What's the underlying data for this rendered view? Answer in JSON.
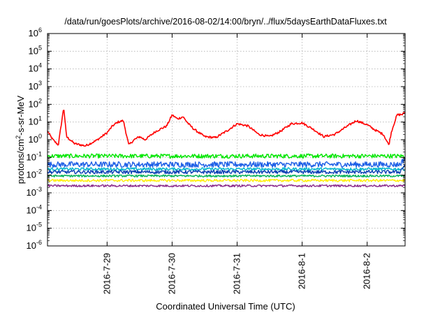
{
  "chart_data": {
    "type": "line",
    "title": "/data/run/goesPlots/archive/2016-08-02/14:00/bryn/../flux/5daysEarthDataFluxes.txt",
    "xlabel": "Coordinated Universal Time (UTC)",
    "ylabel_parts": {
      "main": "protons/cm",
      "sup": "2",
      "rest": "-s-sr-MeV"
    },
    "y_scale": "log",
    "ylim": [
      1e-06,
      1000000.0
    ],
    "y_ticks": [
      {
        "value": 1e-06,
        "base": "10",
        "exp": "-6"
      },
      {
        "value": 1e-05,
        "base": "10",
        "exp": "-5"
      },
      {
        "value": 0.0001,
        "base": "10",
        "exp": "-4"
      },
      {
        "value": 0.001,
        "base": "10",
        "exp": "-3"
      },
      {
        "value": 0.01,
        "base": "10",
        "exp": "-2"
      },
      {
        "value": 0.1,
        "base": "10",
        "exp": "-1"
      },
      {
        "value": 1,
        "base": "10",
        "exp": "0"
      },
      {
        "value": 10,
        "base": "10",
        "exp": "1"
      },
      {
        "value": 100,
        "base": "10",
        "exp": "2"
      },
      {
        "value": 1000.0,
        "base": "10",
        "exp": "3"
      },
      {
        "value": 10000.0,
        "base": "10",
        "exp": "4"
      },
      {
        "value": 100000.0,
        "base": "10",
        "exp": "5"
      },
      {
        "value": 1000000.0,
        "base": "10",
        "exp": "6"
      }
    ],
    "x_unit": "days",
    "x_range": [
      "2016-07-28 02:00",
      "2016-08-02 14:00"
    ],
    "x_ticks": [
      {
        "date": "2016-07-29",
        "label": "2016-7-29"
      },
      {
        "date": "2016-07-30",
        "label": "2016-7-30"
      },
      {
        "date": "2016-07-31",
        "label": "2016-7-31"
      },
      {
        "date": "2016-08-01",
        "label": "2016-8-1"
      },
      {
        "date": "2016-08-02",
        "label": "2016-8-2"
      }
    ],
    "grid": true,
    "legend": "none",
    "series": [
      {
        "color": "#ff0000",
        "noise_log10": 0.06,
        "points": [
          [
            "2016-07-28 02:00",
            3.0
          ],
          [
            "2016-07-28 04:00",
            1.0
          ],
          [
            "2016-07-28 06:00",
            0.5
          ],
          [
            "2016-07-28 08:00",
            70
          ],
          [
            "2016-07-28 09:00",
            1.5
          ],
          [
            "2016-07-28 12:00",
            0.6
          ],
          [
            "2016-07-28 16:00",
            0.45
          ],
          [
            "2016-07-28 20:00",
            0.9
          ],
          [
            "2016-07-29 00:00",
            2.5
          ],
          [
            "2016-07-29 02:00",
            6
          ],
          [
            "2016-07-29 04:00",
            10
          ],
          [
            "2016-07-29 06:00",
            12
          ],
          [
            "2016-07-29 08:00",
            0.5
          ],
          [
            "2016-07-29 10:00",
            1.0
          ],
          [
            "2016-07-29 12:00",
            1.5
          ],
          [
            "2016-07-29 14:00",
            1.0
          ],
          [
            "2016-07-29 18:00",
            3
          ],
          [
            "2016-07-29 22:00",
            6
          ],
          [
            "2016-07-30 00:00",
            25
          ],
          [
            "2016-07-30 02:00",
            15
          ],
          [
            "2016-07-30 04:00",
            20
          ],
          [
            "2016-07-30 06:00",
            8
          ],
          [
            "2016-07-30 08:00",
            4
          ],
          [
            "2016-07-30 12:00",
            1.5
          ],
          [
            "2016-07-30 16:00",
            1.3
          ],
          [
            "2016-07-30 20:00",
            3
          ],
          [
            "2016-07-31 00:00",
            8
          ],
          [
            "2016-07-31 04:00",
            6
          ],
          [
            "2016-07-31 08:00",
            2.0
          ],
          [
            "2016-07-31 12:00",
            1.5
          ],
          [
            "2016-07-31 16:00",
            3
          ],
          [
            "2016-07-31 20:00",
            8
          ],
          [
            "2016-08-01 00:00",
            9
          ],
          [
            "2016-08-01 04:00",
            4
          ],
          [
            "2016-08-01 08:00",
            1.5
          ],
          [
            "2016-08-01 12:00",
            2.0
          ],
          [
            "2016-08-01 16:00",
            5
          ],
          [
            "2016-08-01 20:00",
            12
          ],
          [
            "2016-08-02 00:00",
            7
          ],
          [
            "2016-08-02 03:00",
            3.5
          ],
          [
            "2016-08-02 06:00",
            2.0
          ],
          [
            "2016-08-02 08:00",
            0.5
          ],
          [
            "2016-08-02 09:00",
            3
          ],
          [
            "2016-08-02 11:00",
            25
          ],
          [
            "2016-08-02 13:00",
            27
          ],
          [
            "2016-08-02 14:00",
            35
          ]
        ]
      },
      {
        "color": "#00e600",
        "noise_log10": 0.12,
        "points": [
          [
            "2016-07-28 02:00",
            0.12
          ],
          [
            "2016-08-02 14:00",
            0.12
          ]
        ]
      },
      {
        "color": "#1e5fe6",
        "noise_log10": 0.16,
        "points": [
          [
            "2016-07-28 02:00",
            0.04
          ],
          [
            "2016-08-02 12:00",
            0.04
          ],
          [
            "2016-08-02 14:00",
            0.09
          ]
        ]
      },
      {
        "color": "#00b4cc",
        "noise_log10": 0.08,
        "points": [
          [
            "2016-07-28 02:00",
            0.022
          ],
          [
            "2016-08-02 14:00",
            0.022
          ]
        ]
      },
      {
        "color": "#0a3fb4",
        "noise_log10": 0.1,
        "points": [
          [
            "2016-07-28 02:00",
            0.015
          ],
          [
            "2016-08-02 12:00",
            0.015
          ],
          [
            "2016-08-02 14:00",
            0.04
          ]
        ]
      },
      {
        "color": "#00b45a",
        "noise_log10": 0.06,
        "points": [
          [
            "2016-07-28 02:00",
            0.009
          ],
          [
            "2016-08-02 14:00",
            0.009
          ]
        ]
      },
      {
        "color": "#ffee00",
        "noise_log10": 0.07,
        "points": [
          [
            "2016-07-28 02:00",
            0.005
          ],
          [
            "2016-08-02 14:00",
            0.005
          ]
        ]
      },
      {
        "color": "#8b2a8b",
        "noise_log10": 0.06,
        "points": [
          [
            "2016-07-28 02:00",
            0.0025
          ],
          [
            "2016-08-02 14:00",
            0.0025
          ]
        ]
      }
    ]
  }
}
